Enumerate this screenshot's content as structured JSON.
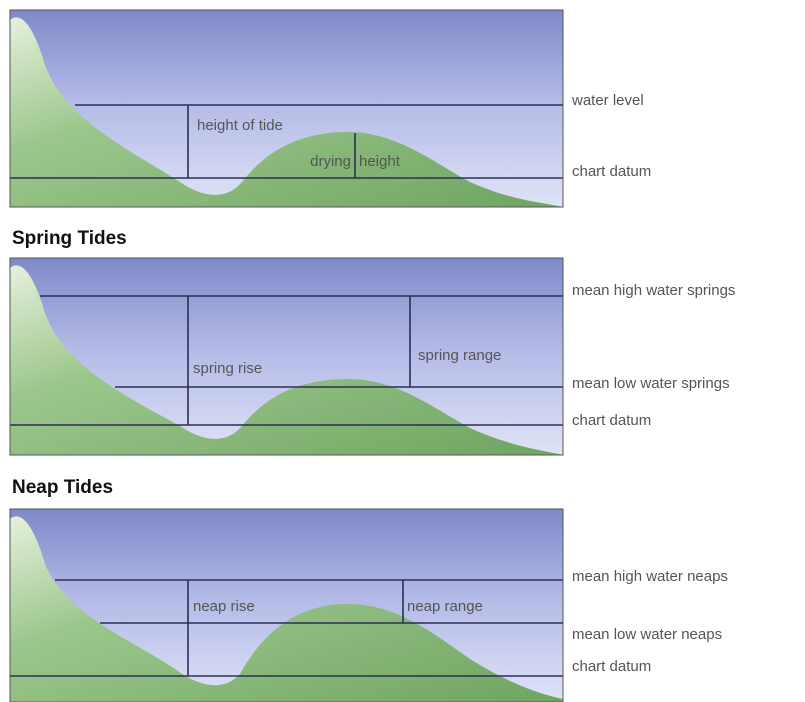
{
  "panels": [
    {
      "inner_labels": [
        "height of tide",
        "drying",
        "height"
      ],
      "side_labels": [
        "water level",
        "chart datum"
      ]
    },
    {
      "title": "Spring Tides",
      "inner_labels": [
        "spring rise",
        "spring range"
      ],
      "side_labels": [
        "mean high water springs",
        "mean low water springs",
        "chart datum"
      ]
    },
    {
      "title": "Neap Tides",
      "inner_labels": [
        "neap rise",
        "neap range"
      ],
      "side_labels": [
        "mean high water neaps",
        "mean low water neaps",
        "chart datum"
      ]
    }
  ]
}
